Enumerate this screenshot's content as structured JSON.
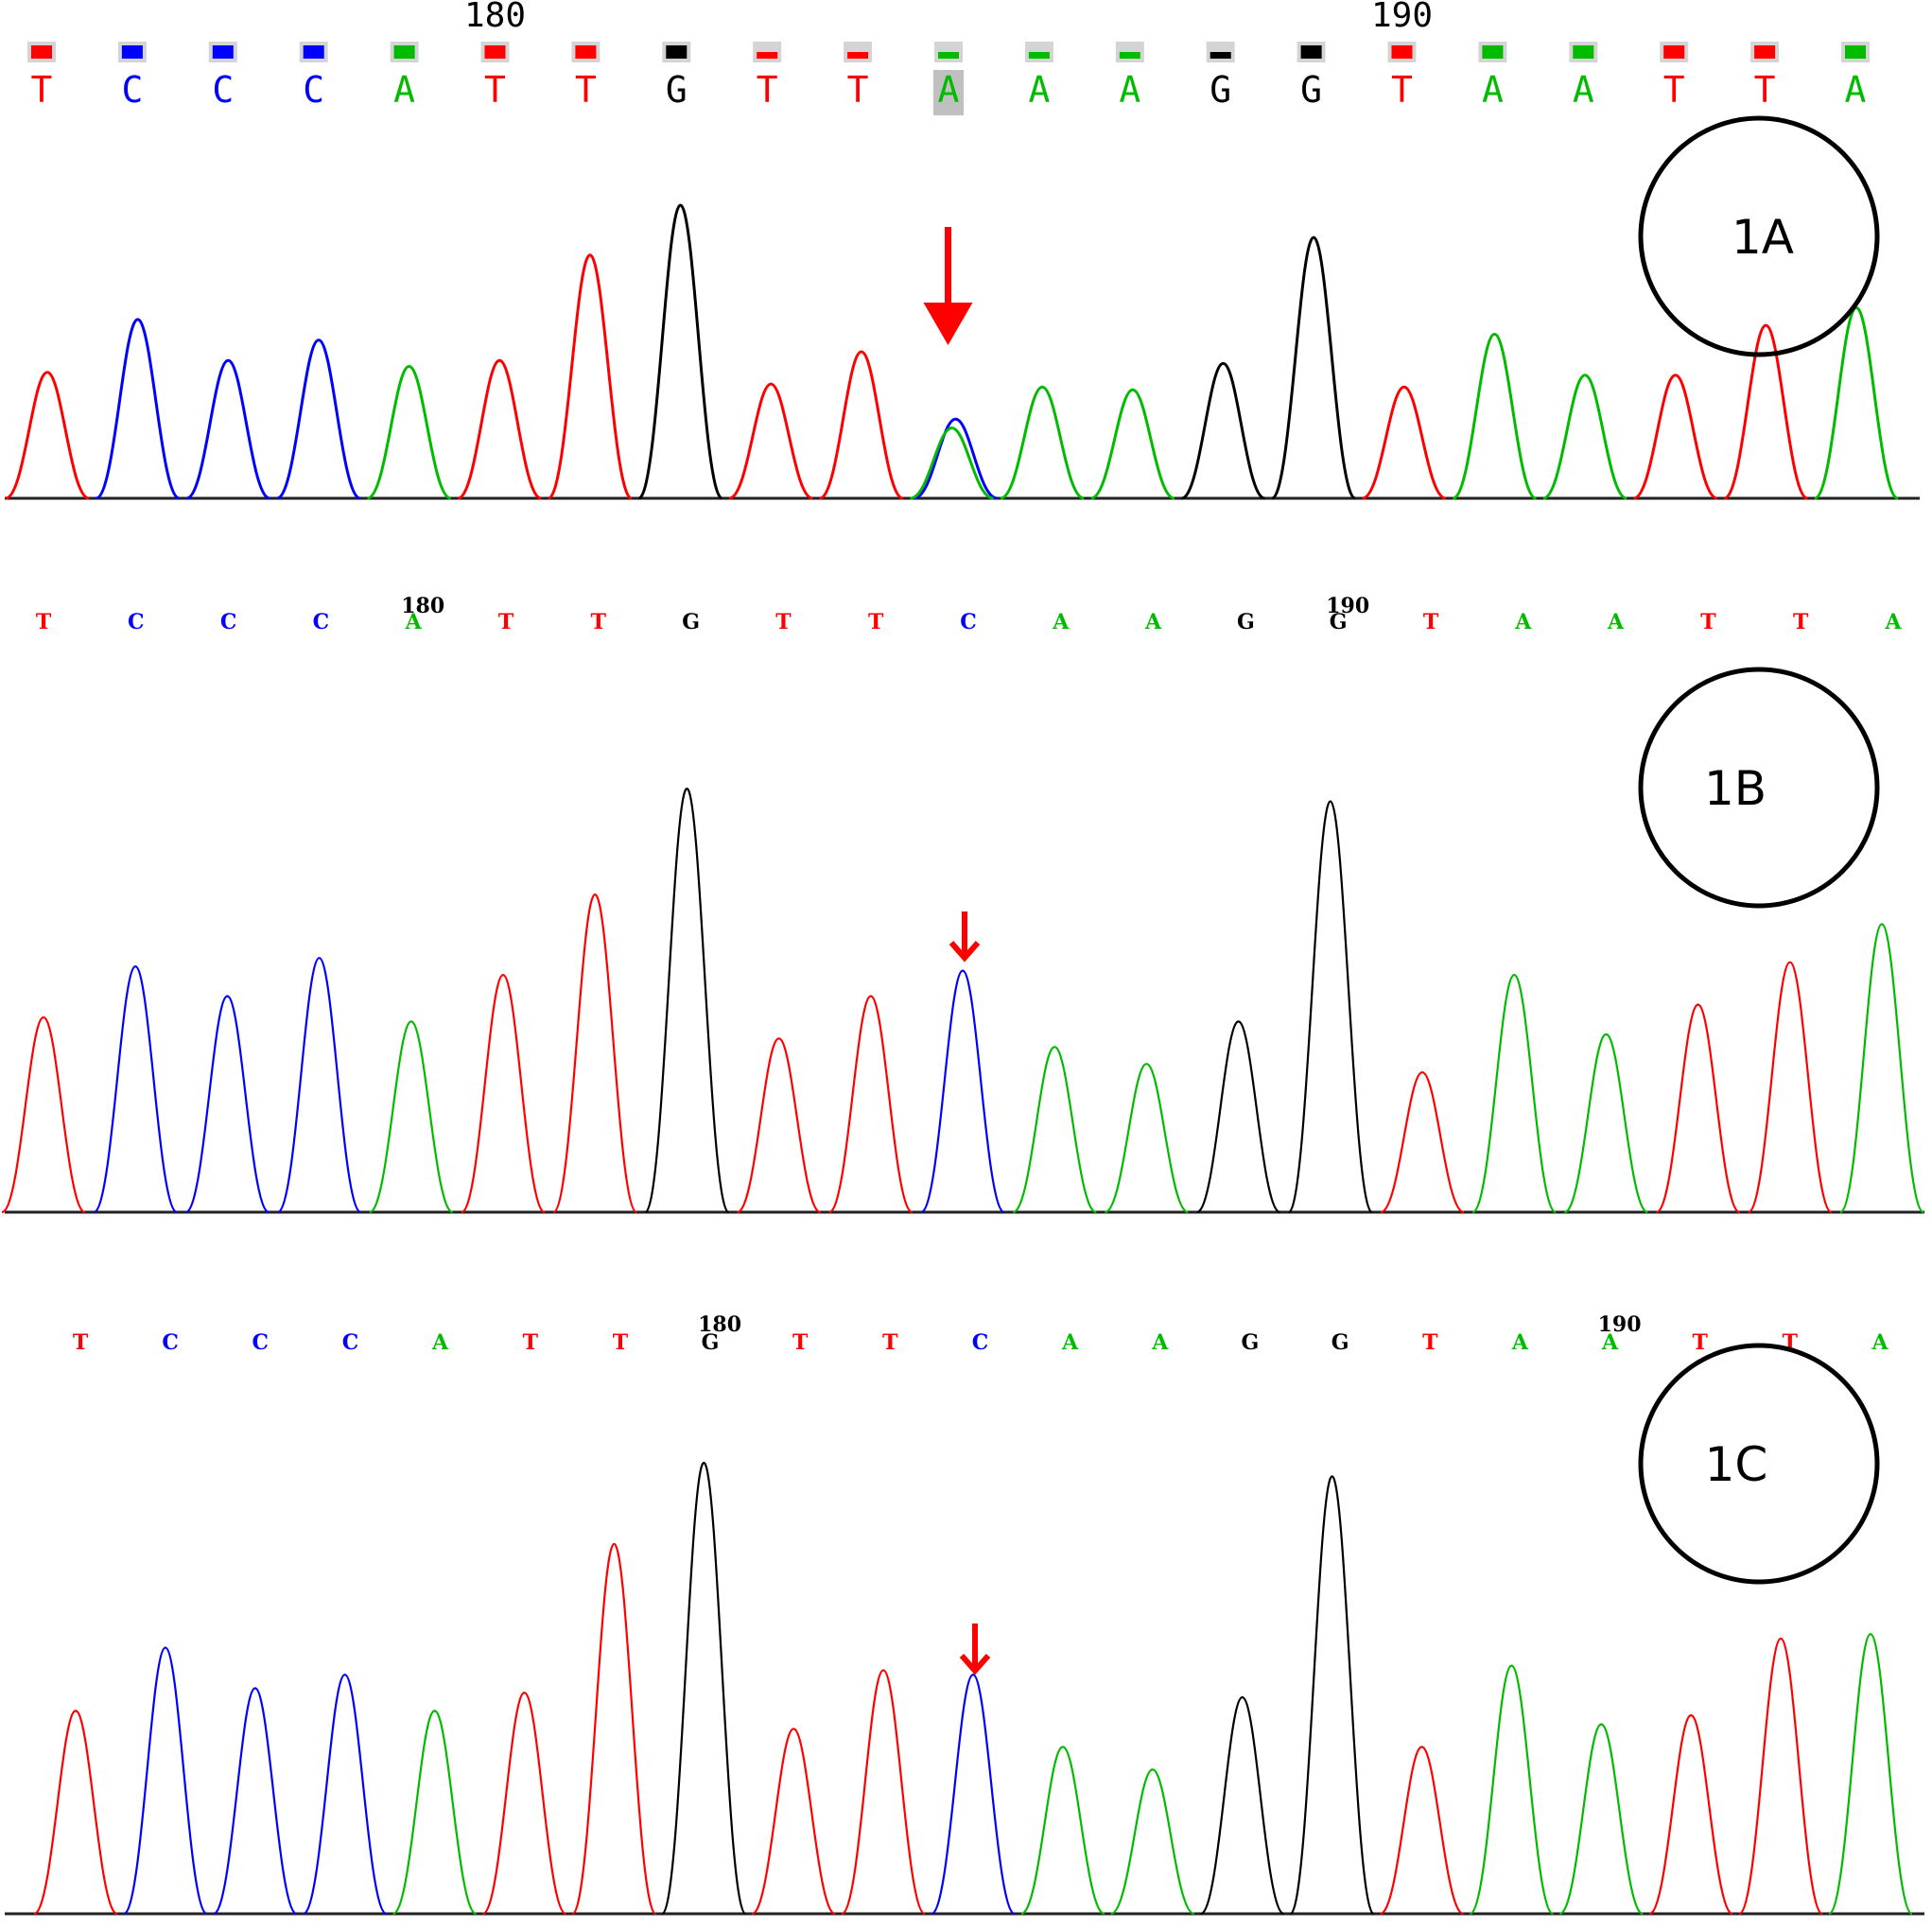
{
  "chart_data": [
    {
      "type": "line",
      "panel": "1A",
      "label": "1A",
      "bases": [
        "T",
        "C",
        "C",
        "C",
        "A",
        "T",
        "T",
        "G",
        "T",
        "T",
        "A",
        "A",
        "A",
        "G",
        "G",
        "T",
        "A",
        "A",
        "T",
        "T",
        "A"
      ],
      "quality_bars": [
        1,
        1,
        1,
        1,
        1,
        1,
        1,
        1,
        0.5,
        0.5,
        0.5,
        0.5,
        0.5,
        0.5,
        1,
        1,
        1,
        1,
        1,
        1,
        1
      ],
      "highlighted_base_index": 10,
      "position_ticks": [
        {
          "label": "180",
          "index": 5
        },
        {
          "label": "190",
          "index": 15
        }
      ],
      "peaks": [
        {
          "base": "T",
          "height": 0.43
        },
        {
          "base": "C",
          "height": 0.61
        },
        {
          "base": "C",
          "height": 0.47
        },
        {
          "base": "C",
          "height": 0.54
        },
        {
          "base": "A",
          "height": 0.45
        },
        {
          "base": "T",
          "height": 0.47
        },
        {
          "base": "T",
          "height": 0.83
        },
        {
          "base": "G",
          "height": 1.0
        },
        {
          "base": "T",
          "height": 0.39
        },
        {
          "base": "T",
          "height": 0.5
        },
        {
          "base": "A",
          "height": 0.24,
          "secondary": {
            "base": "C",
            "height": 0.27
          }
        },
        {
          "base": "A",
          "height": 0.38
        },
        {
          "base": "A",
          "height": 0.37
        },
        {
          "base": "G",
          "height": 0.46
        },
        {
          "base": "G",
          "height": 0.89
        },
        {
          "base": "T",
          "height": 0.38
        },
        {
          "base": "A",
          "height": 0.56
        },
        {
          "base": "A",
          "height": 0.42
        },
        {
          "base": "T",
          "height": 0.42
        },
        {
          "base": "T",
          "height": 0.59
        },
        {
          "base": "A",
          "height": 0.65
        }
      ],
      "arrow_index": 10
    },
    {
      "type": "line",
      "panel": "1B",
      "label": "1B",
      "bases": [
        "T",
        "C",
        "C",
        "C",
        "A",
        "T",
        "T",
        "G",
        "T",
        "T",
        "C",
        "A",
        "A",
        "G",
        "G",
        "T",
        "A",
        "A",
        "T",
        "T",
        "A"
      ],
      "position_ticks": [
        {
          "label": "180",
          "index": 4
        },
        {
          "label": "190",
          "index": 14
        }
      ],
      "peaks": [
        {
          "base": "T",
          "height": 0.46
        },
        {
          "base": "C",
          "height": 0.58
        },
        {
          "base": "C",
          "height": 0.51
        },
        {
          "base": "C",
          "height": 0.6
        },
        {
          "base": "A",
          "height": 0.45
        },
        {
          "base": "T",
          "height": 0.56
        },
        {
          "base": "T",
          "height": 0.75
        },
        {
          "base": "G",
          "height": 1.0
        },
        {
          "base": "T",
          "height": 0.41
        },
        {
          "base": "T",
          "height": 0.51
        },
        {
          "base": "C",
          "height": 0.57
        },
        {
          "base": "A",
          "height": 0.39
        },
        {
          "base": "A",
          "height": 0.35
        },
        {
          "base": "G",
          "height": 0.45
        },
        {
          "base": "G",
          "height": 0.97
        },
        {
          "base": "T",
          "height": 0.33
        },
        {
          "base": "A",
          "height": 0.56
        },
        {
          "base": "A",
          "height": 0.42
        },
        {
          "base": "T",
          "height": 0.49
        },
        {
          "base": "T",
          "height": 0.59
        },
        {
          "base": "A",
          "height": 0.68
        }
      ],
      "arrow_index": 10
    },
    {
      "type": "line",
      "panel": "1C",
      "label": "1C",
      "bases": [
        "T",
        "C",
        "C",
        "C",
        "A",
        "T",
        "T",
        "G",
        "T",
        "T",
        "C",
        "A",
        "A",
        "G",
        "G",
        "T",
        "A",
        "A",
        "T",
        "T",
        "A"
      ],
      "position_ticks": [
        {
          "label": "180",
          "index": 7
        },
        {
          "label": "190",
          "index": 17
        }
      ],
      "peaks": [
        {
          "base": "T",
          "height": 0.45
        },
        {
          "base": "C",
          "height": 0.59
        },
        {
          "base": "C",
          "height": 0.5
        },
        {
          "base": "C",
          "height": 0.53
        },
        {
          "base": "A",
          "height": 0.45
        },
        {
          "base": "T",
          "height": 0.49
        },
        {
          "base": "T",
          "height": 0.82
        },
        {
          "base": "G",
          "height": 1.0
        },
        {
          "base": "T",
          "height": 0.41
        },
        {
          "base": "T",
          "height": 0.54
        },
        {
          "base": "C",
          "height": 0.53
        },
        {
          "base": "A",
          "height": 0.37
        },
        {
          "base": "A",
          "height": 0.32
        },
        {
          "base": "G",
          "height": 0.48
        },
        {
          "base": "G",
          "height": 0.97
        },
        {
          "base": "T",
          "height": 0.37
        },
        {
          "base": "A",
          "height": 0.55
        },
        {
          "base": "A",
          "height": 0.42
        },
        {
          "base": "T",
          "height": 0.44
        },
        {
          "base": "T",
          "height": 0.61
        },
        {
          "base": "A",
          "height": 0.62
        }
      ],
      "arrow_index": 10
    }
  ],
  "colors": {
    "A": "#00bb00",
    "C": "#0000ff",
    "G": "#000000",
    "T": "#ff0000",
    "arrow": "#ff0000",
    "highlight": "#c0c0c0",
    "quality_bg": "#d4d4d4"
  }
}
